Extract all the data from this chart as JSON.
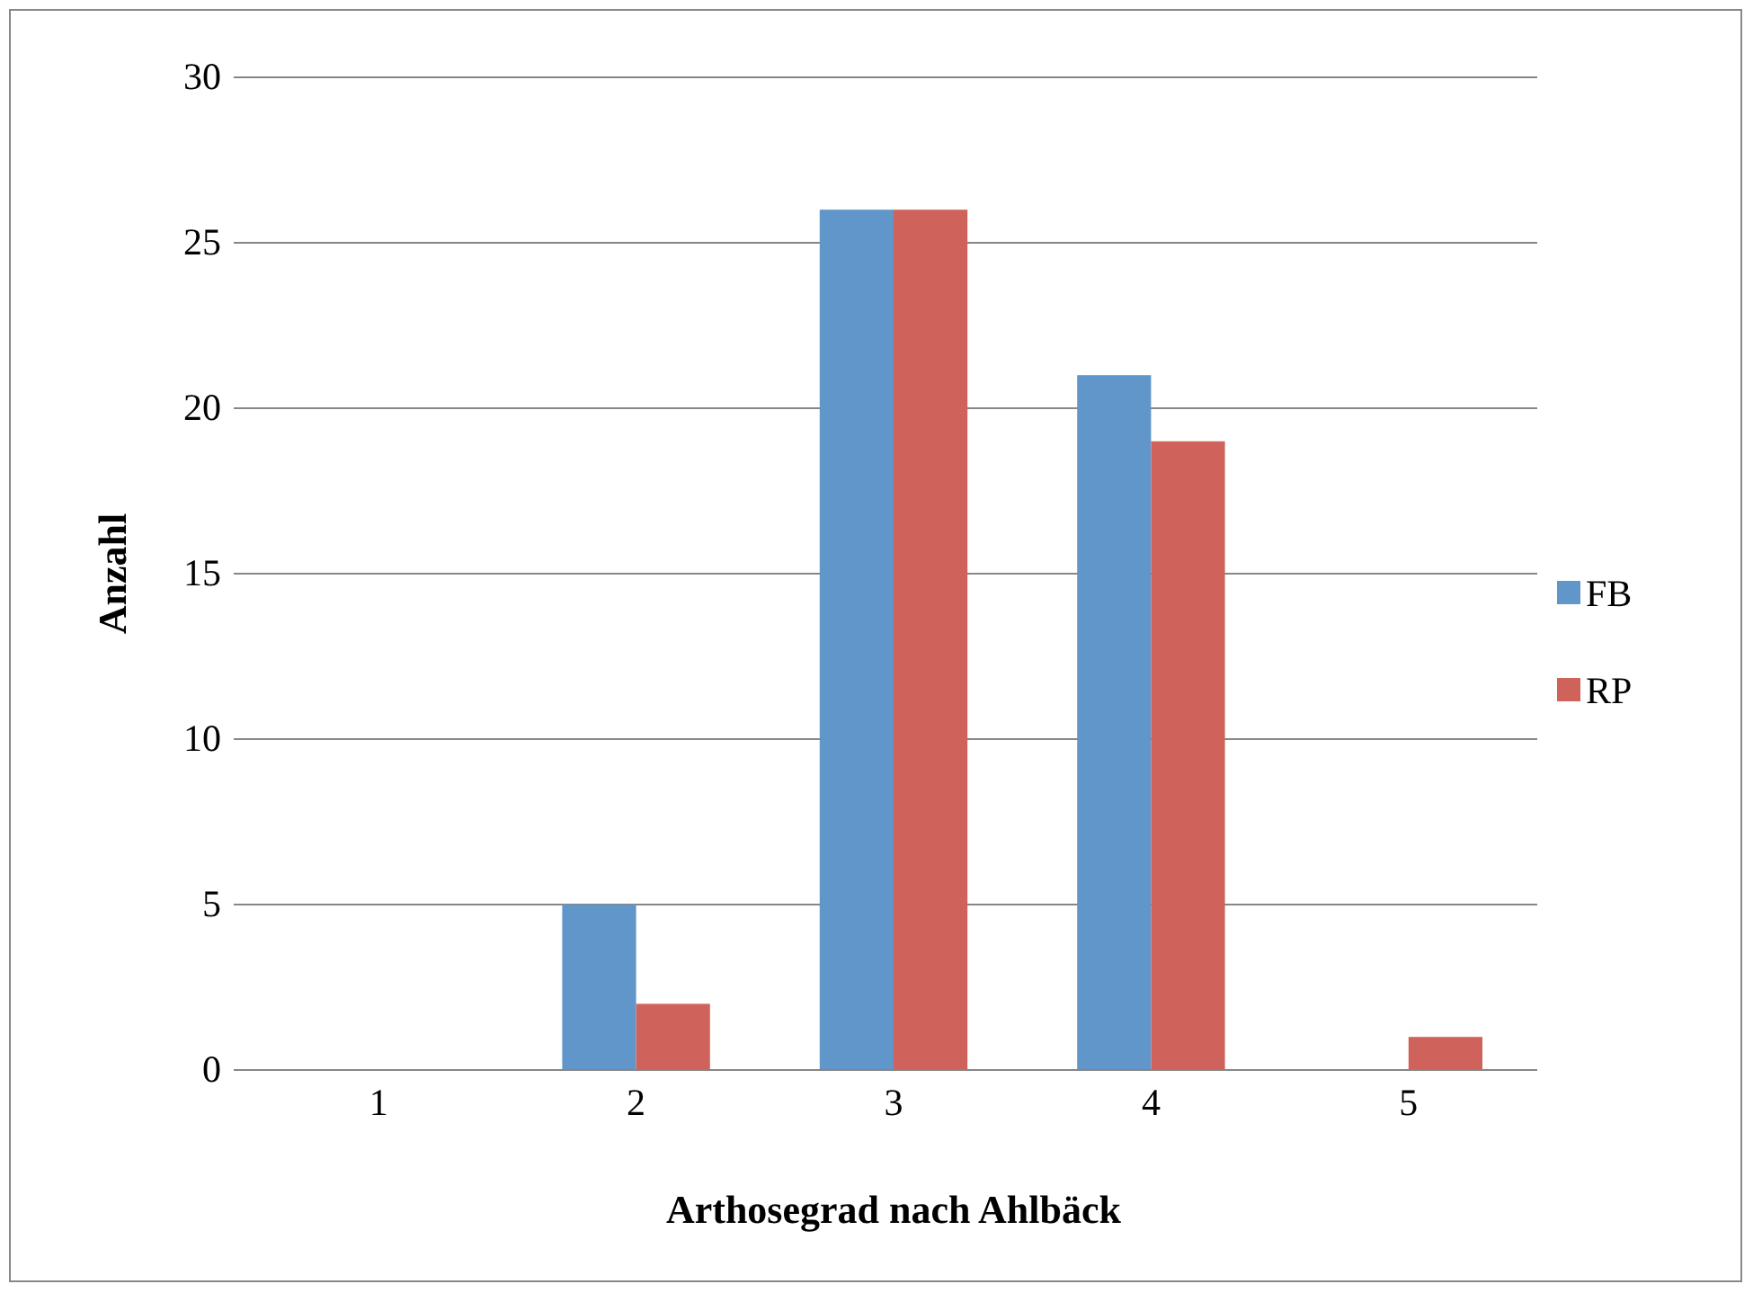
{
  "chart_data": {
    "type": "bar",
    "xlabel": "Arthosegrad nach Ahlbäck",
    "ylabel": "Anzahl",
    "categories": [
      "1",
      "2",
      "3",
      "4",
      "5"
    ],
    "series": [
      {
        "name": "FB",
        "color": "#6096c9",
        "values": [
          0,
          5,
          26,
          21,
          0
        ]
      },
      {
        "name": "RP",
        "color": "#cf635c",
        "values": [
          0,
          2,
          26,
          19,
          1
        ]
      }
    ],
    "ylim": [
      0,
      30
    ],
    "yticks": [
      0,
      5,
      10,
      15,
      20,
      25,
      30
    ],
    "grid": "y",
    "legend": "right"
  }
}
